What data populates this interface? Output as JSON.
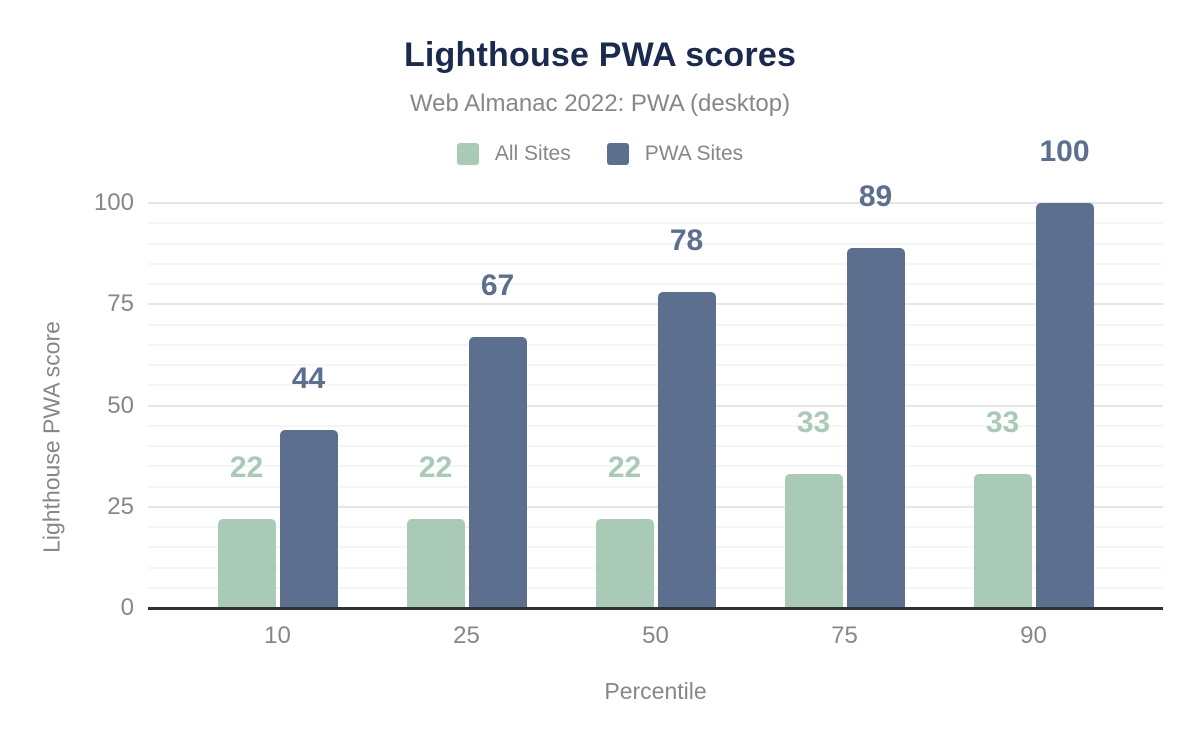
{
  "chart_data": {
    "type": "bar",
    "title": "Lighthouse PWA scores",
    "subtitle": "Web Almanac 2022: PWA (desktop)",
    "categories": [
      "10",
      "25",
      "50",
      "75",
      "90"
    ],
    "series": [
      {
        "name": "All Sites",
        "color": "#a9cab6",
        "values": [
          22,
          22,
          22,
          33,
          33
        ]
      },
      {
        "name": "PWA Sites",
        "color": "#5d6f8e",
        "values": [
          44,
          67,
          78,
          89,
          100
        ]
      }
    ],
    "xlabel": "Percentile",
    "ylabel": "Lighthouse PWA score",
    "ylim": [
      0,
      100
    ],
    "yticks": [
      0,
      25,
      50,
      75,
      100
    ],
    "minor_grid_step": 5,
    "grid": "horizontal-major-and-minor",
    "legend_position": "top",
    "data_labels_shown": true
  },
  "colors": {
    "title": "#1b2b4d",
    "muted_text": "#85878a",
    "axis_line": "#2e3135",
    "grid_major": "#e4e6e8",
    "grid_minor": "#f4f5f6",
    "background": "#ffffff"
  }
}
